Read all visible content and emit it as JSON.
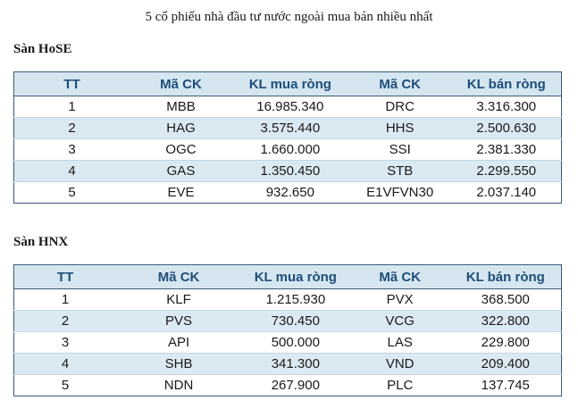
{
  "title": "5 cổ phiếu nhà đầu tư nước ngoài mua bán nhiều nhất",
  "hose": {
    "label": "Sàn HoSE",
    "headers": [
      "TT",
      "Mã CK",
      "KL mua ròng",
      "Mã CK",
      "KL bán ròng"
    ],
    "rows": [
      [
        "1",
        "MBB",
        "16.985.340",
        "DRC",
        "3.316.300"
      ],
      [
        "2",
        "HAG",
        "3.575.440",
        "HHS",
        "2.500.630"
      ],
      [
        "3",
        "OGC",
        "1.660.000",
        "SSI",
        "2.381.330"
      ],
      [
        "4",
        "GAS",
        "1.350.450",
        "STB",
        "2.299.550"
      ],
      [
        "5",
        "EVE",
        "932.650",
        "E1VFVN30",
        "2.037.140"
      ]
    ]
  },
  "hnx": {
    "label": "Sàn HNX",
    "headers": [
      "TT",
      "Mã CK",
      "KL mua ròng",
      "Mã CK",
      "KL bán ròng"
    ],
    "rows": [
      [
        "1",
        "KLF",
        "1.215.930",
        "PVX",
        "368.500"
      ],
      [
        "2",
        "PVS",
        "730.450",
        "VCG",
        "322.800"
      ],
      [
        "3",
        "API",
        "500.000",
        "LAS",
        "229.800"
      ],
      [
        "4",
        "SHB",
        "341.300",
        "VND",
        "209.400"
      ],
      [
        "5",
        "NDN",
        "267.900",
        "PLC",
        "137.745"
      ]
    ]
  }
}
